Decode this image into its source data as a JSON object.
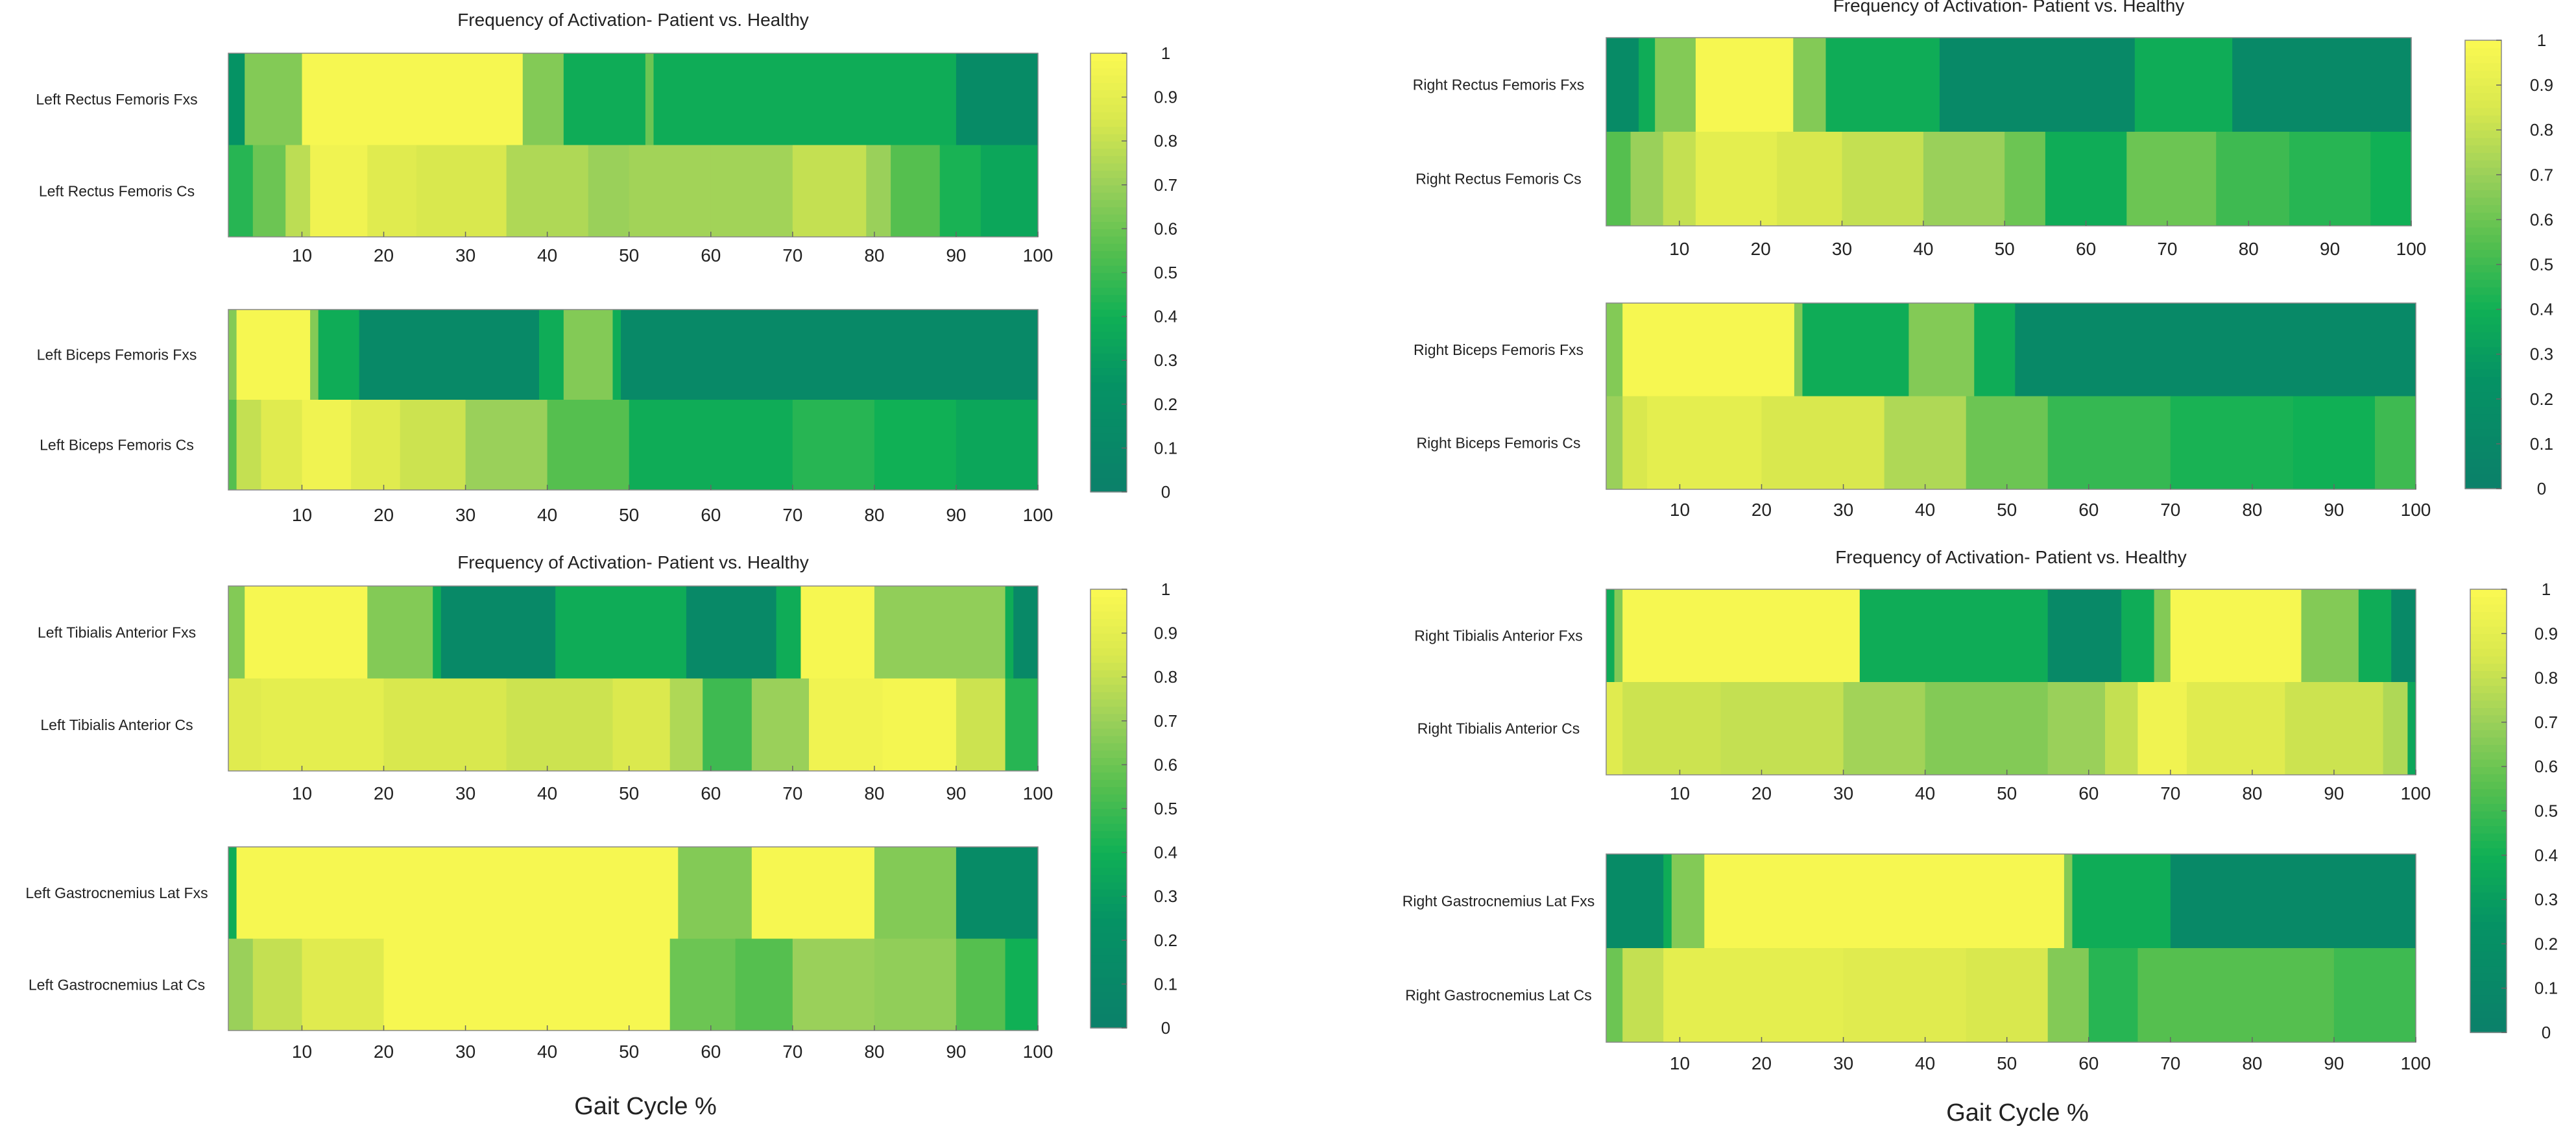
{
  "figure": {
    "left_xlabel": "Gait Cycle %",
    "right_xlabel": "Gait Cycle %"
  },
  "chart_data": [
    {
      "type": "heatmap",
      "title": "Frequency of Activation- Patient vs. Healthy",
      "xlabel": "",
      "xlim": [
        1,
        100
      ],
      "xticks": [
        10,
        20,
        30,
        40,
        50,
        60,
        70,
        80,
        90,
        100
      ],
      "colorbar": {
        "range": [
          0,
          1
        ],
        "ticks": [
          "0",
          "0.1",
          "0.2",
          "0.3",
          "0.4",
          "0.5",
          "0.6",
          "0.7",
          "0.8",
          "0.9",
          "1"
        ],
        "colormap": "dark-green-to-yellow"
      },
      "rows": [
        {
          "label": "Left Rectus Femoris Fxs",
          "segments": [
            [
              1,
              3,
              0.25
            ],
            [
              3,
              10,
              0.65
            ],
            [
              10,
              37,
              0.98
            ],
            [
              37,
              42,
              0.65
            ],
            [
              42,
              52,
              0.38
            ],
            [
              52,
              53,
              0.6
            ],
            [
              53,
              90,
              0.38
            ],
            [
              90,
              100,
              0.15
            ]
          ]
        },
        {
          "label": "Left Rectus Femoris Cs",
          "segments": [
            [
              1,
              4,
              0.45
            ],
            [
              4,
              8,
              0.6
            ],
            [
              8,
              11,
              0.78
            ],
            [
              11,
              18,
              0.95
            ],
            [
              18,
              24,
              0.88
            ],
            [
              24,
              35,
              0.85
            ],
            [
              35,
              45,
              0.75
            ],
            [
              45,
              50,
              0.7
            ],
            [
              50,
              60,
              0.72
            ],
            [
              60,
              70,
              0.72
            ],
            [
              70,
              79,
              0.8
            ],
            [
              79,
              82,
              0.7
            ],
            [
              82,
              88,
              0.55
            ],
            [
              88,
              93,
              0.42
            ],
            [
              93,
              100,
              0.35
            ]
          ]
        }
      ]
    },
    {
      "type": "heatmap",
      "xlim": [
        1,
        100
      ],
      "xticks": [
        10,
        20,
        30,
        40,
        50,
        60,
        70,
        80,
        90,
        100
      ],
      "rows": [
        {
          "label": "Left Biceps Femoris Fxs",
          "segments": [
            [
              1,
              2,
              0.65
            ],
            [
              2,
              11,
              0.98
            ],
            [
              11,
              12,
              0.65
            ],
            [
              12,
              17,
              0.38
            ],
            [
              17,
              39,
              0.12
            ],
            [
              39,
              42,
              0.38
            ],
            [
              42,
              48,
              0.65
            ],
            [
              48,
              49,
              0.38
            ],
            [
              49,
              100,
              0.12
            ]
          ]
        },
        {
          "label": "Left Biceps Femoris Cs",
          "segments": [
            [
              1,
              2,
              0.55
            ],
            [
              2,
              5,
              0.8
            ],
            [
              5,
              10,
              0.88
            ],
            [
              10,
              16,
              0.95
            ],
            [
              16,
              22,
              0.88
            ],
            [
              22,
              30,
              0.82
            ],
            [
              30,
              40,
              0.7
            ],
            [
              40,
              50,
              0.55
            ],
            [
              50,
              70,
              0.38
            ],
            [
              70,
              80,
              0.45
            ],
            [
              80,
              90,
              0.4
            ],
            [
              90,
              100,
              0.35
            ]
          ]
        }
      ]
    },
    {
      "type": "heatmap",
      "title": "Frequency of Activation- Patient vs. Healthy",
      "xlim": [
        1,
        100
      ],
      "xticks": [
        10,
        20,
        30,
        40,
        50,
        60,
        70,
        80,
        90,
        100
      ],
      "rows": [
        {
          "label": "Left Tibialis Anterior Fxs",
          "segments": [
            [
              1,
              3,
              0.65
            ],
            [
              3,
              18,
              0.98
            ],
            [
              18,
              26,
              0.65
            ],
            [
              26,
              27,
              0.38
            ],
            [
              27,
              41,
              0.12
            ],
            [
              41,
              57,
              0.38
            ],
            [
              57,
              68,
              0.12
            ],
            [
              68,
              71,
              0.38
            ],
            [
              71,
              80,
              0.98
            ],
            [
              80,
              96,
              0.68
            ],
            [
              96,
              97,
              0.38
            ],
            [
              97,
              100,
              0.12
            ]
          ]
        },
        {
          "label": "Left Tibialis Anterior Cs",
          "segments": [
            [
              1,
              5,
              0.88
            ],
            [
              5,
              20,
              0.9
            ],
            [
              20,
              35,
              0.85
            ],
            [
              35,
              48,
              0.82
            ],
            [
              48,
              55,
              0.86
            ],
            [
              55,
              59,
              0.75
            ],
            [
              59,
              65,
              0.5
            ],
            [
              65,
              72,
              0.7
            ],
            [
              72,
              81,
              0.95
            ],
            [
              81,
              90,
              0.97
            ],
            [
              90,
              96,
              0.82
            ],
            [
              96,
              100,
              0.45
            ]
          ]
        }
      ]
    },
    {
      "type": "heatmap",
      "xlabel": "Gait Cycle %",
      "xlim": [
        1,
        100
      ],
      "xticks": [
        10,
        20,
        30,
        40,
        50,
        60,
        70,
        80,
        90,
        100
      ],
      "rows": [
        {
          "label": "Left Gastrocnemius Lat Fxs",
          "segments": [
            [
              1,
              2,
              0.38
            ],
            [
              2,
              56,
              0.98
            ],
            [
              56,
              65,
              0.65
            ],
            [
              65,
              80,
              0.98
            ],
            [
              80,
              90,
              0.65
            ],
            [
              90,
              100,
              0.15
            ]
          ]
        },
        {
          "label": "Left Gastrocnemius Lat Cs",
          "segments": [
            [
              1,
              4,
              0.7
            ],
            [
              4,
              10,
              0.8
            ],
            [
              10,
              20,
              0.88
            ],
            [
              20,
              55,
              0.98
            ],
            [
              55,
              63,
              0.6
            ],
            [
              63,
              70,
              0.55
            ],
            [
              70,
              80,
              0.7
            ],
            [
              80,
              90,
              0.68
            ],
            [
              90,
              96,
              0.55
            ],
            [
              96,
              100,
              0.4
            ]
          ]
        }
      ]
    },
    {
      "type": "heatmap",
      "title": "Frequency of Activation- Patient vs. Healthy",
      "xlim": [
        1,
        100
      ],
      "xticks": [
        10,
        20,
        30,
        40,
        50,
        60,
        70,
        80,
        90,
        100
      ],
      "colorbar": {
        "range": [
          0,
          1
        ],
        "ticks": [
          "0",
          "0.1",
          "0.2",
          "0.3",
          "0.4",
          "0.5",
          "0.6",
          "0.7",
          "0.8",
          "0.9",
          "1"
        ],
        "colormap": "dark-green-to-yellow"
      },
      "rows": [
        {
          "label": "Right Rectus Femoris Fxs",
          "segments": [
            [
              1,
              5,
              0.15
            ],
            [
              5,
              7,
              0.38
            ],
            [
              7,
              12,
              0.65
            ],
            [
              12,
              24,
              0.98
            ],
            [
              24,
              28,
              0.65
            ],
            [
              28,
              42,
              0.38
            ],
            [
              42,
              66,
              0.12
            ],
            [
              66,
              78,
              0.38
            ],
            [
              78,
              100,
              0.12
            ]
          ]
        },
        {
          "label": "Right Rectus Femoris Cs",
          "segments": [
            [
              1,
              4,
              0.55
            ],
            [
              4,
              8,
              0.7
            ],
            [
              8,
              12,
              0.8
            ],
            [
              12,
              22,
              0.9
            ],
            [
              22,
              30,
              0.85
            ],
            [
              30,
              40,
              0.8
            ],
            [
              40,
              50,
              0.7
            ],
            [
              50,
              55,
              0.6
            ],
            [
              55,
              65,
              0.38
            ],
            [
              65,
              76,
              0.6
            ],
            [
              76,
              85,
              0.5
            ],
            [
              85,
              95,
              0.45
            ],
            [
              95,
              100,
              0.4
            ]
          ]
        }
      ]
    },
    {
      "type": "heatmap",
      "xlim": [
        1,
        100
      ],
      "xticks": [
        10,
        20,
        30,
        40,
        50,
        60,
        70,
        80,
        90,
        100
      ],
      "rows": [
        {
          "label": "Right Biceps Femoris Fxs",
          "segments": [
            [
              1,
              3,
              0.65
            ],
            [
              3,
              24,
              0.98
            ],
            [
              24,
              25,
              0.65
            ],
            [
              25,
              38,
              0.38
            ],
            [
              38,
              46,
              0.65
            ],
            [
              46,
              51,
              0.38
            ],
            [
              51,
              100,
              0.12
            ]
          ]
        },
        {
          "label": "Right Biceps Femoris Cs",
          "segments": [
            [
              1,
              3,
              0.7
            ],
            [
              3,
              6,
              0.85
            ],
            [
              6,
              20,
              0.9
            ],
            [
              20,
              35,
              0.85
            ],
            [
              35,
              45,
              0.75
            ],
            [
              45,
              55,
              0.6
            ],
            [
              55,
              70,
              0.48
            ],
            [
              70,
              85,
              0.42
            ],
            [
              85,
              95,
              0.4
            ],
            [
              95,
              100,
              0.5
            ]
          ]
        }
      ]
    },
    {
      "type": "heatmap",
      "title": "Frequency of Activation- Patient vs. Healthy",
      "xlim": [
        1,
        100
      ],
      "xticks": [
        10,
        20,
        30,
        40,
        50,
        60,
        70,
        80,
        90,
        100
      ],
      "rows": [
        {
          "label": "Right Tibialis Anterior Fxs",
          "segments": [
            [
              1,
              2,
              0.38
            ],
            [
              2,
              3,
              0.65
            ],
            [
              3,
              32,
              0.98
            ],
            [
              32,
              55,
              0.38
            ],
            [
              55,
              64,
              0.12
            ],
            [
              64,
              68,
              0.38
            ],
            [
              68,
              70,
              0.65
            ],
            [
              70,
              86,
              0.98
            ],
            [
              86,
              93,
              0.65
            ],
            [
              93,
              97,
              0.38
            ],
            [
              97,
              100,
              0.12
            ]
          ]
        },
        {
          "label": "Right Tibialis Anterior Cs",
          "segments": [
            [
              1,
              3,
              0.88
            ],
            [
              3,
              15,
              0.82
            ],
            [
              15,
              30,
              0.8
            ],
            [
              30,
              40,
              0.72
            ],
            [
              40,
              55,
              0.65
            ],
            [
              55,
              62,
              0.7
            ],
            [
              62,
              66,
              0.8
            ],
            [
              66,
              72,
              0.95
            ],
            [
              72,
              84,
              0.88
            ],
            [
              84,
              96,
              0.82
            ],
            [
              96,
              99,
              0.75
            ],
            [
              99,
              100,
              0.35
            ]
          ]
        }
      ]
    },
    {
      "type": "heatmap",
      "xlabel": "Gait Cycle %",
      "xlim": [
        1,
        100
      ],
      "xticks": [
        10,
        20,
        30,
        40,
        50,
        60,
        70,
        80,
        90,
        100
      ],
      "rows": [
        {
          "label": "Right Gastrocnemius Lat Fxs",
          "segments": [
            [
              1,
              8,
              0.15
            ],
            [
              8,
              9,
              0.38
            ],
            [
              9,
              13,
              0.65
            ],
            [
              13,
              57,
              0.98
            ],
            [
              57,
              58,
              0.65
            ],
            [
              58,
              70,
              0.38
            ],
            [
              70,
              100,
              0.12
            ]
          ]
        },
        {
          "label": "Right  Gastrocnemius Lat Cs",
          "segments": [
            [
              1,
              3,
              0.6
            ],
            [
              3,
              8,
              0.8
            ],
            [
              8,
              14,
              0.9
            ],
            [
              14,
              30,
              0.9
            ],
            [
              30,
              45,
              0.88
            ],
            [
              45,
              55,
              0.85
            ],
            [
              55,
              60,
              0.65
            ],
            [
              60,
              66,
              0.45
            ],
            [
              66,
              75,
              0.55
            ],
            [
              75,
              90,
              0.55
            ],
            [
              90,
              100,
              0.5
            ]
          ]
        }
      ]
    }
  ]
}
